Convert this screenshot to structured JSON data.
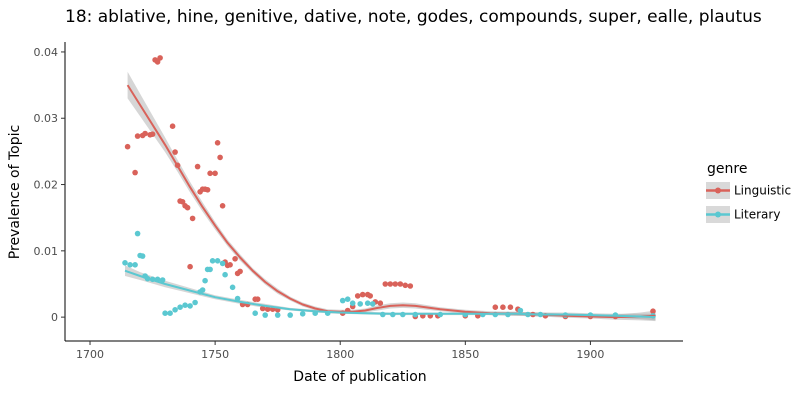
{
  "chart_data": {
    "type": "scatter",
    "title": "18: ablative, hine, genitive, dative, note, godes, compounds, super, ealle, plautus",
    "xlabel": "Date of publication",
    "ylabel": "Prevalence of Topic",
    "xlim": [
      1690,
      1937
    ],
    "ylim": [
      -0.0036,
      0.0415
    ],
    "x_ticks": [
      1700,
      1750,
      1800,
      1850,
      1900
    ],
    "y_ticks": [
      0,
      0.01,
      0.02,
      0.03,
      0.04
    ],
    "y_tick_labels": [
      "0",
      "0.01",
      "0.02",
      "0.03",
      "0.04"
    ],
    "grid": false,
    "legend": {
      "title": "genre",
      "position": "right"
    },
    "series": [
      {
        "name": "Linguistic",
        "color": "#d9625a",
        "points": [
          [
            1715,
            0.0257
          ],
          [
            1718,
            0.0218
          ],
          [
            1719,
            0.0273
          ],
          [
            1721,
            0.0274
          ],
          [
            1722,
            0.0277
          ],
          [
            1724,
            0.0275
          ],
          [
            1725,
            0.0276
          ],
          [
            1726,
            0.0388
          ],
          [
            1727,
            0.0385
          ],
          [
            1728,
            0.0391
          ],
          [
            1733,
            0.0288
          ],
          [
            1734,
            0.0249
          ],
          [
            1735,
            0.0229
          ],
          [
            1736,
            0.0175
          ],
          [
            1737,
            0.0174
          ],
          [
            1738,
            0.0168
          ],
          [
            1739,
            0.0165
          ],
          [
            1740,
            0.0076
          ],
          [
            1741,
            0.0149
          ],
          [
            1743,
            0.0227
          ],
          [
            1744,
            0.0189
          ],
          [
            1745,
            0.0193
          ],
          [
            1746,
            0.0193
          ],
          [
            1747,
            0.0192
          ],
          [
            1748,
            0.0217
          ],
          [
            1750,
            0.0217
          ],
          [
            1751,
            0.0263
          ],
          [
            1752,
            0.0241
          ],
          [
            1753,
            0.0168
          ],
          [
            1754,
            0.0083
          ],
          [
            1755,
            0.0078
          ],
          [
            1756,
            0.0079
          ],
          [
            1758,
            0.0088
          ],
          [
            1759,
            0.0066
          ],
          [
            1760,
            0.0069
          ],
          [
            1761,
            0.0019
          ],
          [
            1763,
            0.0019
          ],
          [
            1766,
            0.0027
          ],
          [
            1767,
            0.0027
          ],
          [
            1769,
            0.0013
          ],
          [
            1771,
            0.0012
          ],
          [
            1773,
            0.0012
          ],
          [
            1775,
            0.0011
          ],
          [
            1801,
            0.0006
          ],
          [
            1803,
            0.001
          ],
          [
            1805,
            0.0016
          ],
          [
            1807,
            0.0032
          ],
          [
            1809,
            0.0034
          ],
          [
            1811,
            0.0034
          ],
          [
            1812,
            0.0032
          ],
          [
            1814,
            0.0023
          ],
          [
            1816,
            0.0021
          ],
          [
            1818,
            0.005
          ],
          [
            1820,
            0.005
          ],
          [
            1822,
            0.005
          ],
          [
            1824,
            0.005
          ],
          [
            1826,
            0.0048
          ],
          [
            1828,
            0.0047
          ],
          [
            1830,
            0.0001
          ],
          [
            1833,
            0.0002
          ],
          [
            1836,
            0.0002
          ],
          [
            1839,
            0.0002
          ],
          [
            1850,
            0.0002
          ],
          [
            1855,
            0.0002
          ],
          [
            1862,
            0.0015
          ],
          [
            1865,
            0.0015
          ],
          [
            1868,
            0.0015
          ],
          [
            1871,
            0.0012
          ],
          [
            1877,
            0.0004
          ],
          [
            1882,
            0.0002
          ],
          [
            1890,
            0.0001
          ],
          [
            1900,
            0.0001
          ],
          [
            1910,
            0.0001
          ],
          [
            1925,
            0.0009
          ]
        ]
      },
      {
        "name": "Literary",
        "color": "#5bc8d1",
        "points": [
          [
            1714,
            0.0082
          ],
          [
            1716,
            0.0079
          ],
          [
            1718,
            0.0079
          ],
          [
            1719,
            0.0126
          ],
          [
            1720,
            0.0093
          ],
          [
            1721,
            0.0092
          ],
          [
            1722,
            0.0062
          ],
          [
            1723,
            0.0058
          ],
          [
            1725,
            0.0057
          ],
          [
            1727,
            0.0057
          ],
          [
            1729,
            0.0056
          ],
          [
            1730,
            0.0006
          ],
          [
            1732,
            0.0006
          ],
          [
            1734,
            0.0011
          ],
          [
            1736,
            0.0015
          ],
          [
            1738,
            0.0018
          ],
          [
            1740,
            0.0017
          ],
          [
            1742,
            0.0022
          ],
          [
            1744,
            0.0038
          ],
          [
            1745,
            0.0041
          ],
          [
            1746,
            0.0055
          ],
          [
            1747,
            0.0072
          ],
          [
            1748,
            0.0072
          ],
          [
            1749,
            0.0085
          ],
          [
            1751,
            0.0085
          ],
          [
            1753,
            0.0081
          ],
          [
            1754,
            0.0064
          ],
          [
            1757,
            0.0045
          ],
          [
            1759,
            0.0028
          ],
          [
            1766,
            0.0006
          ],
          [
            1770,
            0.0003
          ],
          [
            1775,
            0.0003
          ],
          [
            1780,
            0.0003
          ],
          [
            1785,
            0.0005
          ],
          [
            1790,
            0.0006
          ],
          [
            1795,
            0.0006
          ],
          [
            1801,
            0.0025
          ],
          [
            1803,
            0.0027
          ],
          [
            1805,
            0.0021
          ],
          [
            1808,
            0.002
          ],
          [
            1811,
            0.0021
          ],
          [
            1813,
            0.002
          ],
          [
            1817,
            0.0004
          ],
          [
            1821,
            0.0004
          ],
          [
            1825,
            0.0004
          ],
          [
            1830,
            0.0004
          ],
          [
            1840,
            0.0004
          ],
          [
            1850,
            0.0004
          ],
          [
            1857,
            0.0004
          ],
          [
            1862,
            0.0004
          ],
          [
            1867,
            0.0004
          ],
          [
            1872,
            0.001
          ],
          [
            1875,
            0.0004
          ],
          [
            1880,
            0.0004
          ],
          [
            1890,
            0.0003
          ],
          [
            1900,
            0.0003
          ],
          [
            1910,
            0.0003
          ],
          [
            1925,
            0.0002
          ]
        ]
      }
    ],
    "trends": [
      {
        "name": "Linguistic",
        "color": "#d9625a",
        "x": [
          1715,
          1720,
          1725,
          1730,
          1735,
          1740,
          1745,
          1750,
          1755,
          1760,
          1765,
          1770,
          1775,
          1780,
          1785,
          1790,
          1795,
          1800,
          1805,
          1810,
          1815,
          1820,
          1825,
          1830,
          1840,
          1850,
          1860,
          1870,
          1880,
          1890,
          1900,
          1910,
          1920,
          1926
        ],
        "y": [
          0.035,
          0.032,
          0.029,
          0.026,
          0.0228,
          0.0196,
          0.0166,
          0.0138,
          0.0112,
          0.009,
          0.007,
          0.0053,
          0.0039,
          0.0028,
          0.0019,
          0.0013,
          0.0009,
          0.0008,
          0.0008,
          0.001,
          0.0014,
          0.0017,
          0.0018,
          0.0017,
          0.0012,
          0.0008,
          0.0006,
          0.0005,
          0.0004,
          0.0002,
          0.0001,
          0.0,
          0.0001,
          0.0002
        ],
        "lower": [
          0.033,
          0.0303,
          0.0276,
          0.0249,
          0.0219,
          0.0188,
          0.0159,
          0.0132,
          0.0107,
          0.0085,
          0.0066,
          0.0049,
          0.0035,
          0.0025,
          0.0016,
          0.001,
          0.0006,
          0.0005,
          0.0005,
          0.0007,
          0.001,
          0.0013,
          0.0014,
          0.0013,
          0.0009,
          0.0005,
          0.0003,
          0.0002,
          0.0001,
          -0.0001,
          -0.0002,
          -0.0004,
          -0.0005,
          -0.0006
        ],
        "upper": [
          0.037,
          0.0337,
          0.0304,
          0.0271,
          0.0237,
          0.0204,
          0.0173,
          0.0144,
          0.0117,
          0.0095,
          0.0074,
          0.0057,
          0.0043,
          0.0031,
          0.0022,
          0.0016,
          0.0012,
          0.0011,
          0.0011,
          0.0013,
          0.0018,
          0.0021,
          0.0022,
          0.0021,
          0.0015,
          0.0011,
          0.0009,
          0.0008,
          0.0007,
          0.0005,
          0.0004,
          0.0004,
          0.0007,
          0.001
        ]
      },
      {
        "name": "Literary",
        "color": "#5bc8d1",
        "x": [
          1714,
          1720,
          1730,
          1740,
          1750,
          1760,
          1770,
          1780,
          1790,
          1800,
          1810,
          1820,
          1830,
          1840,
          1850,
          1860,
          1870,
          1880,
          1890,
          1900,
          1910,
          1920,
          1926
        ],
        "y": [
          0.007,
          0.0062,
          0.005,
          0.004,
          0.003,
          0.0023,
          0.0017,
          0.0012,
          0.0009,
          0.0007,
          0.0006,
          0.0005,
          0.0005,
          0.0005,
          0.0005,
          0.0005,
          0.0005,
          0.0004,
          0.0004,
          0.0003,
          0.0002,
          0.0001,
          0.0
        ],
        "lower": [
          0.0062,
          0.0056,
          0.0045,
          0.0036,
          0.0027,
          0.002,
          0.0014,
          0.001,
          0.0007,
          0.0005,
          0.0004,
          0.0003,
          0.0003,
          0.0003,
          0.0003,
          0.0003,
          0.0002,
          0.0001,
          0.0001,
          0.0,
          -0.0001,
          -0.0003,
          -0.0005
        ],
        "upper": [
          0.0078,
          0.0068,
          0.0055,
          0.0044,
          0.0033,
          0.0026,
          0.002,
          0.0014,
          0.0011,
          0.0009,
          0.0008,
          0.0007,
          0.0007,
          0.0007,
          0.0007,
          0.0007,
          0.0008,
          0.0007,
          0.0007,
          0.0006,
          0.0005,
          0.0005,
          0.0005
        ]
      }
    ]
  }
}
